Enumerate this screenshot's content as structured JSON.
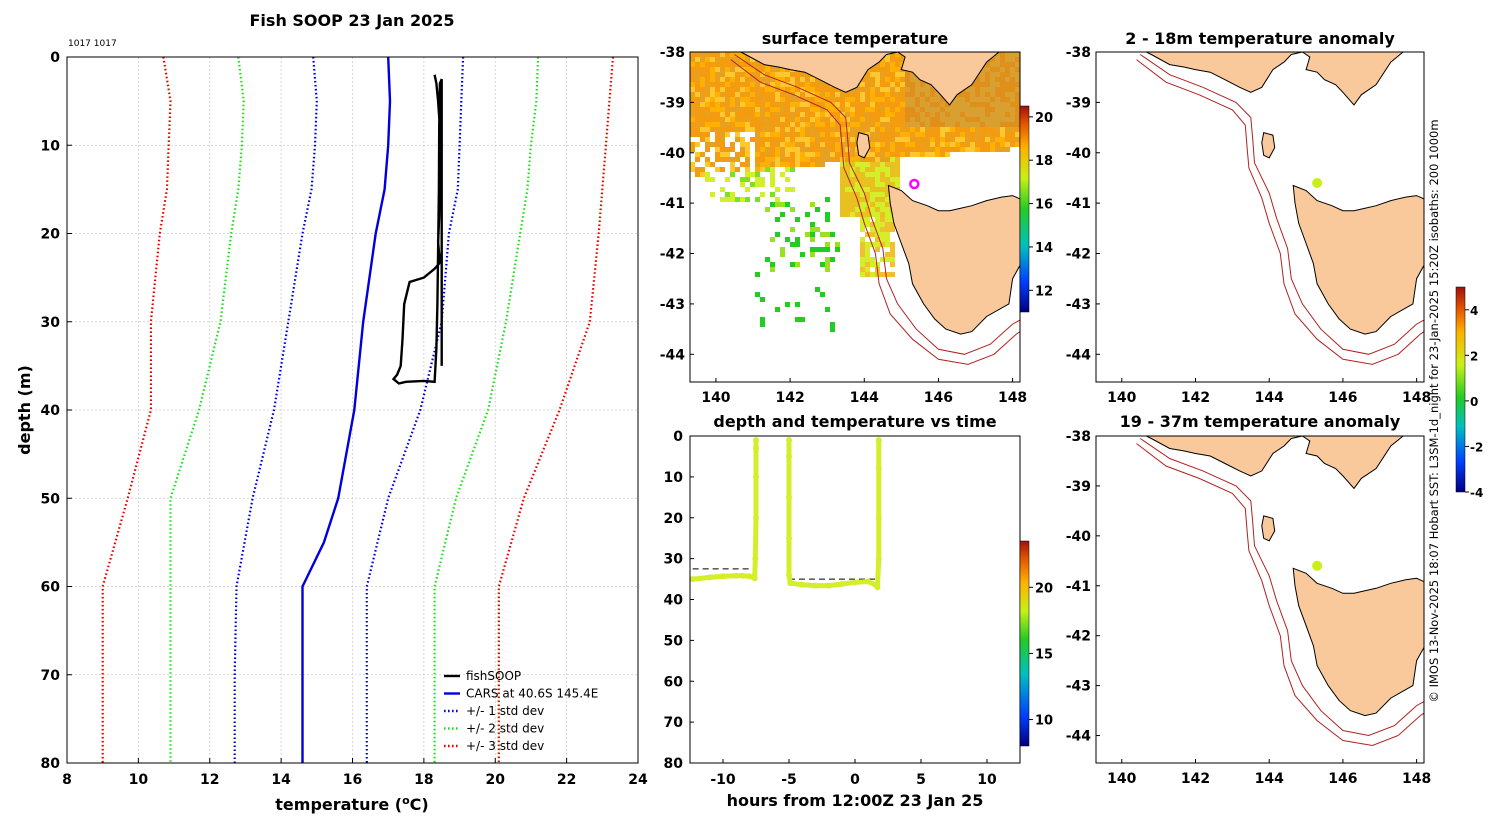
{
  "colors": {
    "land": "#f9c89b",
    "coast": "#000000",
    "isobath": "#b22222",
    "grid": "#cccccc",
    "fish": "#000000",
    "cars": "#0000dd",
    "std1": "#0000dd",
    "std2": "#22dd22",
    "std3": "#ee0000",
    "marker": "#ff00ff",
    "trace": "#d4ee2a",
    "dot": "#c8f016"
  },
  "chart_data": [
    {
      "id": "profile",
      "type": "line",
      "title": "Fish SOOP 23 Jan 2025",
      "corner_label": "1017 1017",
      "xlabel": "temperature (",
      "xlabel_sup": "o",
      "xlabel_end": "C)",
      "ylabel": "depth (m)",
      "xlim": [
        8,
        24
      ],
      "ylim": [
        0,
        80
      ],
      "xticks": [
        "8",
        "10",
        "12",
        "14",
        "16",
        "18",
        "20",
        "22",
        "24"
      ],
      "yticks": [
        "0",
        "10",
        "20",
        "30",
        "40",
        "50",
        "60",
        "70",
        "80"
      ],
      "legend_position": "bottom-right",
      "series": [
        {
          "name": "fishSOOP",
          "style": "solid",
          "color": "#000000",
          "x": [
            18.3,
            18.35,
            18.4,
            18.45,
            18.45,
            18.43,
            18.4,
            18.42,
            18.45,
            18.43,
            18.3,
            18.0,
            17.6,
            17.45,
            17.4,
            17.35,
            17.25,
            17.15,
            17.3,
            17.5,
            18.0,
            18.3,
            18.35,
            18.38,
            18.4,
            18.42,
            18.43,
            18.45,
            18.5,
            18.5
          ],
          "y": [
            2,
            3,
            5,
            8,
            12,
            18,
            21,
            22,
            23,
            23.4,
            24,
            25,
            25.5,
            28,
            32,
            35,
            36,
            36.5,
            37,
            36.8,
            36.7,
            36.8,
            33,
            28,
            22,
            15,
            8,
            3,
            2.5,
            35
          ]
        },
        {
          "name": "CARS at 40.6S 145.4E",
          "style": "solid",
          "color": "#0000dd",
          "x": [
            17.0,
            17.05,
            17.0,
            16.9,
            16.65,
            16.3,
            16.05,
            15.6,
            15.2,
            14.6,
            14.6,
            14.6,
            14.6
          ],
          "y": [
            0,
            5,
            10,
            15,
            20,
            30,
            40,
            50,
            55,
            60,
            65,
            70,
            80
          ]
        },
        {
          "name": "+/- 1 std dev",
          "style": "dotted",
          "color": "#0000dd",
          "x": [
            14.9,
            15.0,
            14.95,
            14.85,
            14.6,
            14.2,
            13.8,
            13.2,
            12.75,
            12.7,
            12.7
          ],
          "y": [
            0,
            5,
            10,
            15,
            20,
            30,
            40,
            50,
            60,
            70,
            80
          ]
        },
        {
          "name": "+/- 1 std dev upper",
          "style": "dotted",
          "color": "#0000dd",
          "legend": false,
          "x": [
            19.1,
            19.05,
            19.0,
            18.95,
            18.7,
            18.5,
            17.9,
            17.0,
            16.4,
            16.4,
            16.4
          ],
          "y": [
            0,
            5,
            10,
            15,
            20,
            30,
            40,
            50,
            60,
            70,
            80
          ]
        },
        {
          "name": "+/- 2 std dev",
          "style": "dotted",
          "color": "#22dd22",
          "x": [
            12.8,
            12.95,
            12.9,
            12.8,
            12.6,
            12.3,
            11.7,
            10.9,
            10.9,
            10.9
          ],
          "y": [
            0,
            5,
            10,
            15,
            20,
            30,
            40,
            50,
            60,
            80
          ]
        },
        {
          "name": "+/- 2 std dev upper",
          "style": "dotted",
          "color": "#22dd22",
          "legend": false,
          "x": [
            21.2,
            21.15,
            21.0,
            20.9,
            20.7,
            20.3,
            19.8,
            18.9,
            18.3,
            18.3
          ],
          "y": [
            0,
            5,
            10,
            15,
            20,
            30,
            40,
            50,
            60,
            80
          ]
        },
        {
          "name": "+/- 3 std dev",
          "style": "dotted",
          "color": "#ee0000",
          "x": [
            10.7,
            10.9,
            10.85,
            10.8,
            10.6,
            10.35,
            10.35,
            9.7,
            9.0,
            9.0
          ],
          "y": [
            0,
            5,
            10,
            15,
            20,
            30,
            40,
            50,
            60,
            80
          ]
        },
        {
          "name": "+/- 3 std dev upper",
          "style": "dotted",
          "color": "#ee0000",
          "legend": false,
          "x": [
            23.3,
            23.2,
            23.1,
            23.0,
            22.9,
            22.65,
            21.8,
            20.8,
            20.1,
            20.1
          ],
          "y": [
            0,
            5,
            10,
            15,
            20,
            30,
            40,
            50,
            60,
            80
          ]
        }
      ]
    },
    {
      "id": "sst",
      "type": "heatmap",
      "title": "surface temperature",
      "xlim": [
        139.3,
        148.2
      ],
      "ylim": [
        -44.55,
        -38
      ],
      "xticks": [
        "140",
        "142",
        "144",
        "146",
        "148"
      ],
      "yticks": [
        "-38",
        "-39",
        "-40",
        "-41",
        "-42",
        "-43",
        "-44"
      ],
      "colorbar": {
        "min": 11,
        "max": 20.5,
        "ticks": [
          "12",
          "14",
          "16",
          "18",
          "20"
        ]
      },
      "marker": {
        "lon": 145.35,
        "lat": -40.62
      }
    },
    {
      "id": "anom1",
      "type": "heatmap",
      "title": "2 - 18m temperature anomaly",
      "xlim": [
        139.3,
        148.2
      ],
      "ylim": [
        -44.55,
        -38
      ],
      "xticks": [
        "140",
        "142",
        "144",
        "146",
        "148"
      ],
      "yticks": [
        "-38",
        "-39",
        "-40",
        "-41",
        "-42",
        "-43",
        "-44"
      ],
      "point": {
        "lon": 145.3,
        "lat": -40.6,
        "value": 1.5
      }
    },
    {
      "id": "anom2",
      "type": "heatmap",
      "title": "19 - 37m temperature anomaly",
      "xlim": [
        139.3,
        148.2
      ],
      "ylim": [
        -44.55,
        -38
      ],
      "xticks": [
        "140",
        "142",
        "144",
        "146",
        "148"
      ],
      "yticks": [
        "-38",
        "-39",
        "-40",
        "-41",
        "-42",
        "-43",
        "-44"
      ],
      "point": {
        "lon": 145.3,
        "lat": -40.6,
        "value": 1.5
      }
    },
    {
      "id": "anom_colorbar",
      "type": "heatmap",
      "colorbar": {
        "min": -4,
        "max": 5,
        "ticks": [
          "4",
          "2",
          "0",
          "-2",
          "-4"
        ]
      }
    },
    {
      "id": "timeseries",
      "type": "scatter",
      "title": "depth and temperature vs time",
      "xlabel": "hours from 12:00Z 23 Jan 25",
      "xlim": [
        -12.5,
        12.5
      ],
      "ylim": [
        0,
        80
      ],
      "xticks": [
        "-10",
        "-5",
        "0",
        "5",
        "10"
      ],
      "yticks": [
        "0",
        "10",
        "20",
        "30",
        "40",
        "50",
        "60",
        "70",
        "80"
      ],
      "colorbar": {
        "min": 8,
        "max": 23.5,
        "ticks": [
          "20",
          "15",
          "10"
        ]
      },
      "segments": [
        {
          "x": [
            -12.3,
            -11,
            -10,
            -9,
            -8.5,
            -8,
            -7.7,
            -7.6,
            -7.55,
            -7.5,
            -7.5,
            -7.5,
            -7.5
          ],
          "y": [
            35,
            34.6,
            34.3,
            34.2,
            34.2,
            34.3,
            34.6,
            34.8,
            30,
            20,
            10,
            3,
            1
          ]
        },
        {
          "x": [
            -5.0,
            -5.0,
            -5.0,
            -5.0,
            -5.0,
            -4.9,
            -4,
            -3,
            -2,
            -1,
            0,
            1,
            1.6,
            1.7,
            1.8,
            1.8,
            1.8,
            1.8
          ],
          "y": [
            1,
            5,
            15,
            25,
            34,
            36,
            36.4,
            36.6,
            36.6,
            36.2,
            35.8,
            35.6,
            36.5,
            37,
            30,
            20,
            8,
            1
          ]
        }
      ],
      "dashed_lines": [
        {
          "x": [
            -12.3,
            -7.5
          ],
          "y": 32.5
        },
        {
          "x": [
            -5.0,
            1.8
          ],
          "y": 35
        }
      ]
    }
  ],
  "side_label": "© IMOS 13-Nov-2025 18:07 Hobart SST: L3SM-1d_night for 23-Jan-2025 15:20Z isobaths: 200  1000m"
}
